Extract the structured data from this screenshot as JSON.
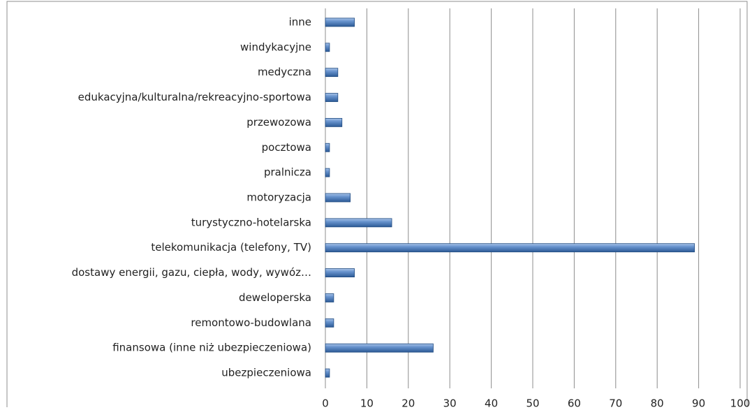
{
  "chart_data": {
    "type": "bar",
    "orientation": "horizontal",
    "categories": [
      "inne",
      "windykacyjne",
      "medyczna",
      "edukacyjna/kulturalna/rekreacyjno-sportowa",
      "przewozowa",
      "pocztowa",
      "pralnicza",
      "motoryzacja",
      "turystyczno-hotelarska",
      "telekomunikacja (telefony, TV)",
      "dostawy energii, gazu, ciepła, wody, wywóz…",
      "deweloperska",
      "remontowo-budowlana",
      "finansowa (inne niż ubezpieczeniowa)",
      "ubezpieczeniowa"
    ],
    "values": [
      7,
      1,
      3,
      3,
      4,
      1,
      1,
      6,
      16,
      89,
      7,
      2,
      2,
      26,
      1
    ],
    "color": "#4f81bd",
    "xlim": [
      0,
      100
    ],
    "xticks": [
      0,
      10,
      20,
      30,
      40,
      50,
      60,
      70,
      80,
      90,
      100
    ],
    "grid": true
  }
}
